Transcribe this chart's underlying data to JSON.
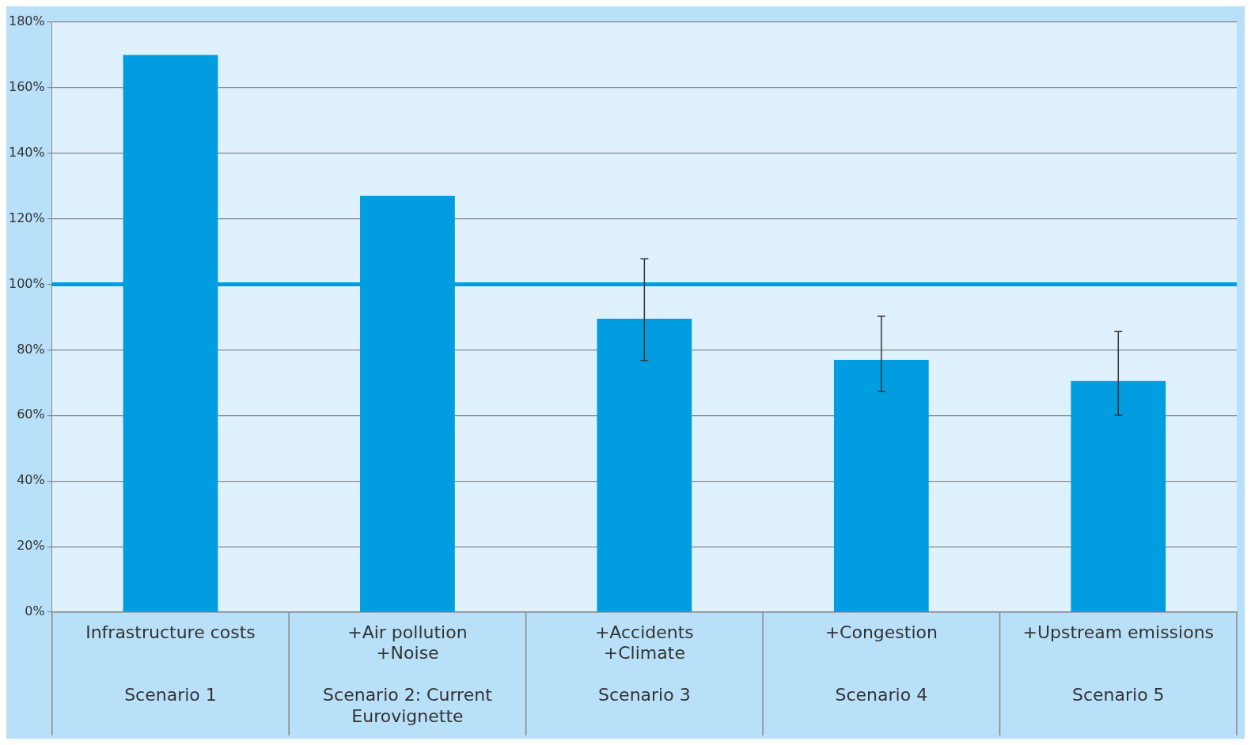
{
  "chart_data": {
    "type": "bar",
    "categories": [
      "Infrastructure costs\n\nScenario 1",
      "+Air pollution\n+Noise\n\nScenario 2: Current\nEurovignette",
      "+Accidents\n+Climate\n\nScenario 3",
      "+Congestion\n\nScenario 4",
      "+Upstream emissions\n\nScenario 5"
    ],
    "values": [
      170,
      127,
      89.5,
      77,
      70.5
    ],
    "errors": [
      null,
      null,
      [
        76.7,
        107.8
      ],
      [
        67.3,
        90.3
      ],
      [
        60.1,
        85.6
      ]
    ],
    "color": "#009ee0",
    "ylim": [
      0,
      180
    ],
    "yticks": [
      {
        "value": 0,
        "label": "0%"
      },
      {
        "value": 20,
        "label": "20%"
      },
      {
        "value": 40,
        "label": "40%"
      },
      {
        "value": 60,
        "label": "60%"
      },
      {
        "value": 80,
        "label": "80%"
      },
      {
        "value": 100,
        "label": "100%"
      },
      {
        "value": 120,
        "label": "120%"
      },
      {
        "value": 140,
        "label": "140%"
      },
      {
        "value": 160,
        "label": "160%"
      },
      {
        "value": 180,
        "label": "180%"
      }
    ],
    "ref_lines": [
      {
        "axis": "y",
        "value": 100,
        "color": "#009ee0"
      }
    ],
    "grid": "y",
    "legend": false
  }
}
